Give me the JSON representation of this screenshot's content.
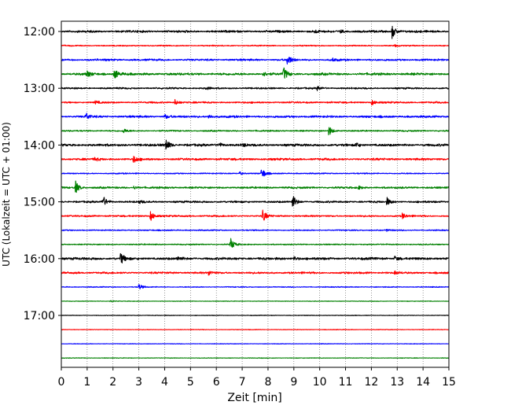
{
  "chart_data": {
    "type": "line",
    "title": "",
    "xlabel": "Zeit  [min]",
    "ylabel": "UTC (Lokalzeit = UTC + 01:00)",
    "xlim": [
      0,
      15
    ],
    "x_ticks": [
      0,
      1,
      2,
      3,
      4,
      5,
      6,
      7,
      8,
      9,
      10,
      11,
      12,
      13,
      14,
      15
    ],
    "x_tick_labels": [
      "0",
      "1",
      "2",
      "3",
      "4",
      "5",
      "6",
      "7",
      "8",
      "9",
      "10",
      "11",
      "12",
      "13",
      "14",
      "15"
    ],
    "y_tick_labels": [
      "12:00",
      "13:00",
      "14:00",
      "15:00",
      "16:00",
      "17:00"
    ],
    "y_tick_trace_index": [
      0,
      4,
      8,
      12,
      16,
      20
    ],
    "trace_minutes": 15,
    "vertical_grid": "dotted",
    "color_cycle": [
      "#000000",
      "#ff0000",
      "#0000ff",
      "#008000"
    ],
    "traces": [
      {
        "start": "12:00",
        "color": "#000000",
        "noise": 0.9,
        "events": [
          {
            "t": 12.8,
            "amp": 9
          },
          {
            "t": 9.8,
            "amp": 2
          },
          {
            "t": 10.8,
            "amp": 2
          }
        ]
      },
      {
        "start": "12:15",
        "color": "#ff0000",
        "noise": 0.5,
        "events": [
          {
            "t": 12.9,
            "amp": 1.5
          }
        ]
      },
      {
        "start": "12:30",
        "color": "#0000ff",
        "noise": 0.8,
        "events": [
          {
            "t": 8.75,
            "amp": 8
          },
          {
            "t": 10.5,
            "amp": 2
          }
        ]
      },
      {
        "start": "12:45",
        "color": "#008000",
        "noise": 1.0,
        "events": [
          {
            "t": 1.0,
            "amp": 4
          },
          {
            "t": 2.05,
            "amp": 7
          },
          {
            "t": 8.6,
            "amp": 9
          },
          {
            "t": 7.8,
            "amp": 3
          }
        ]
      },
      {
        "start": "13:00",
        "color": "#000000",
        "noise": 0.7,
        "events": [
          {
            "t": 9.9,
            "amp": 3
          },
          {
            "t": 5.6,
            "amp": 2
          }
        ]
      },
      {
        "start": "13:15",
        "color": "#ff0000",
        "noise": 0.7,
        "events": [
          {
            "t": 4.4,
            "amp": 4
          },
          {
            "t": 12.0,
            "amp": 4
          },
          {
            "t": 1.3,
            "amp": 2
          }
        ]
      },
      {
        "start": "13:30",
        "color": "#0000ff",
        "noise": 0.9,
        "events": [
          {
            "t": 0.95,
            "amp": 5
          },
          {
            "t": 4.0,
            "amp": 3
          },
          {
            "t": 5.7,
            "amp": 3
          }
        ]
      },
      {
        "start": "13:45",
        "color": "#008000",
        "noise": 0.6,
        "events": [
          {
            "t": 10.35,
            "amp": 7
          },
          {
            "t": 2.4,
            "amp": 3
          }
        ]
      },
      {
        "start": "14:00",
        "color": "#000000",
        "noise": 1.0,
        "events": [
          {
            "t": 4.05,
            "amp": 8
          },
          {
            "t": 6.1,
            "amp": 3
          },
          {
            "t": 11.4,
            "amp": 3
          },
          {
            "t": 7.0,
            "amp": 2
          }
        ]
      },
      {
        "start": "14:15",
        "color": "#ff0000",
        "noise": 0.9,
        "events": [
          {
            "t": 2.8,
            "amp": 5
          },
          {
            "t": 1.3,
            "amp": 2
          }
        ]
      },
      {
        "start": "14:30",
        "color": "#0000ff",
        "noise": 0.5,
        "events": [
          {
            "t": 7.75,
            "amp": 8
          },
          {
            "t": 6.9,
            "amp": 2
          }
        ]
      },
      {
        "start": "14:45",
        "color": "#008000",
        "noise": 0.8,
        "events": [
          {
            "t": 0.55,
            "amp": 8
          },
          {
            "t": 2.8,
            "amp": 2
          },
          {
            "t": 11.5,
            "amp": 2
          }
        ]
      },
      {
        "start": "15:00",
        "color": "#000000",
        "noise": 0.8,
        "events": [
          {
            "t": 1.6,
            "amp": 8
          },
          {
            "t": 8.95,
            "amp": 9
          },
          {
            "t": 12.6,
            "amp": 5
          },
          {
            "t": 3.0,
            "amp": 2
          }
        ]
      },
      {
        "start": "15:15",
        "color": "#ff0000",
        "noise": 0.7,
        "events": [
          {
            "t": 3.45,
            "amp": 7
          },
          {
            "t": 7.8,
            "amp": 8
          },
          {
            "t": 13.2,
            "amp": 4
          }
        ]
      },
      {
        "start": "15:30",
        "color": "#0000ff",
        "noise": 0.5,
        "events": [
          {
            "t": 12.6,
            "amp": 1.5
          }
        ]
      },
      {
        "start": "15:45",
        "color": "#008000",
        "noise": 0.5,
        "events": [
          {
            "t": 6.55,
            "amp": 8
          }
        ]
      },
      {
        "start": "16:00",
        "color": "#000000",
        "noise": 1.0,
        "events": [
          {
            "t": 2.3,
            "amp": 8
          },
          {
            "t": 9.0,
            "amp": 3
          },
          {
            "t": 4.5,
            "amp": 3
          },
          {
            "t": 12.9,
            "amp": 3
          }
        ]
      },
      {
        "start": "16:15",
        "color": "#ff0000",
        "noise": 0.8,
        "events": [
          {
            "t": 5.7,
            "amp": 3
          },
          {
            "t": 12.9,
            "amp": 2
          }
        ]
      },
      {
        "start": "16:30",
        "color": "#0000ff",
        "noise": 0.4,
        "events": [
          {
            "t": 3.0,
            "amp": 4
          }
        ]
      },
      {
        "start": "16:45",
        "color": "#008000",
        "noise": 0.25,
        "events": [
          {
            "t": 1.9,
            "amp": 1
          }
        ]
      },
      {
        "start": "17:00",
        "color": "#000000",
        "noise": 0.25,
        "events": []
      },
      {
        "start": "17:15",
        "color": "#ff0000",
        "noise": 0.25,
        "events": []
      },
      {
        "start": "17:30",
        "color": "#0000ff",
        "noise": 0.25,
        "events": []
      },
      {
        "start": "17:45",
        "color": "#008000",
        "noise": 0.25,
        "events": []
      }
    ]
  }
}
